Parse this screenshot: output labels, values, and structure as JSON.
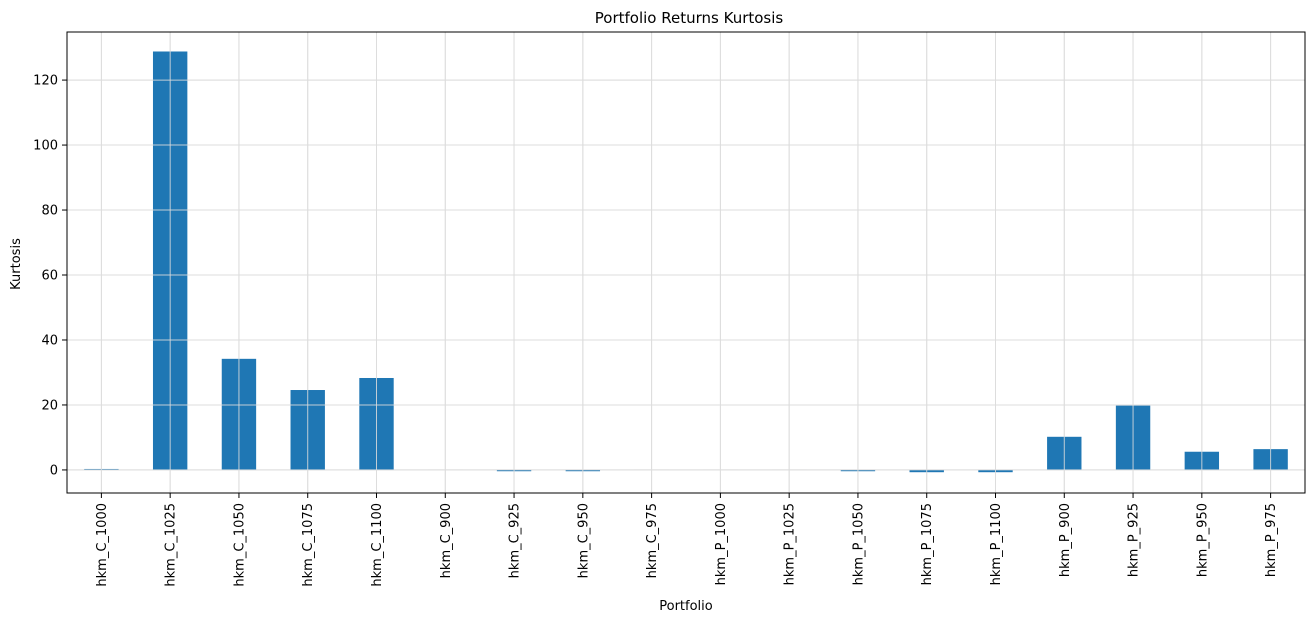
{
  "chart_data": {
    "type": "bar",
    "title": "Portfolio Returns Kurtosis",
    "xlabel": "Portfolio",
    "ylabel": "Kurtosis",
    "categories": [
      "hkm_C_1000",
      "hkm_C_1025",
      "hkm_C_1050",
      "hkm_C_1075",
      "hkm_C_1100",
      "hkm_C_900",
      "hkm_C_925",
      "hkm_C_950",
      "hkm_C_975",
      "hkm_P_1000",
      "hkm_P_1025",
      "hkm_P_1050",
      "hkm_P_1075",
      "hkm_P_1100",
      "hkm_P_900",
      "hkm_P_925",
      "hkm_P_950",
      "hkm_P_975"
    ],
    "values": [
      0.3,
      128.8,
      34.2,
      24.6,
      28.3,
      0.0,
      -0.4,
      -0.4,
      0.0,
      0.0,
      0.0,
      -0.4,
      -0.7,
      -0.7,
      10.2,
      19.8,
      5.6,
      6.4
    ],
    "ylim": [
      -7.1,
      134.8
    ],
    "yticks": [
      0,
      20,
      40,
      60,
      80,
      100,
      120
    ],
    "grid": true,
    "bar_color": "#1f77b4",
    "grid_color": "#dddddd"
  }
}
